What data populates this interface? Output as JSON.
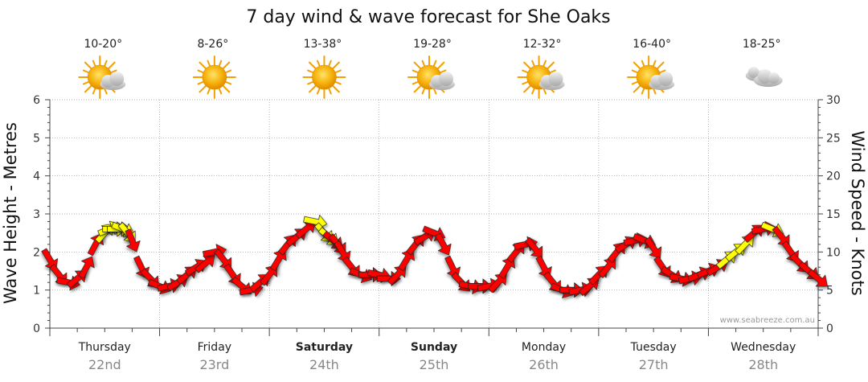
{
  "title": "7 day wind & wave forecast for She Oaks",
  "credit": "www.seabreeze.com.au",
  "days": [
    {
      "name": "Thursday",
      "date": "22nd",
      "temp": "10-20°",
      "icon": "sun-cloud-icon",
      "bold": false
    },
    {
      "name": "Friday",
      "date": "23rd",
      "temp": "8-26°",
      "icon": "sun-icon",
      "bold": false
    },
    {
      "name": "Saturday",
      "date": "24th",
      "temp": "13-38°",
      "icon": "sun-icon",
      "bold": true
    },
    {
      "name": "Sunday",
      "date": "25th",
      "temp": "19-28°",
      "icon": "sun-cloud-icon",
      "bold": true
    },
    {
      "name": "Monday",
      "date": "26th",
      "temp": "12-32°",
      "icon": "sun-cloud-icon",
      "bold": false
    },
    {
      "name": "Tuesday",
      "date": "27th",
      "temp": "16-40°",
      "icon": "sun-cloud-icon",
      "bold": false
    },
    {
      "name": "Wednesday",
      "date": "28th",
      "temp": "18-25°",
      "icon": "cloud-icon",
      "bold": false
    }
  ],
  "colors": {
    "strong_wind": "#ff0000",
    "light_wind": "#ffff00",
    "grid": "#999999",
    "sun": "#f4a000"
  },
  "chart_data": {
    "type": "line",
    "title": "7 day wind & wave forecast for She Oaks",
    "ylabel_left": "Wave Height - Metres",
    "ylabel_right": "Wind Speed - Knots",
    "ylim_left": [
      0,
      6
    ],
    "ylim_right": [
      0,
      30
    ],
    "yticks_left": [
      "0",
      "1",
      "2",
      "3",
      "4",
      "5",
      "6"
    ],
    "yticks_right": [
      "0",
      "5",
      "10",
      "15",
      "20",
      "25",
      "30"
    ],
    "x_unit": "hours from start of Thursday 22nd",
    "grid": true,
    "series": [
      {
        "name": "",
        "marker": "wind-direction-arrow",
        "x": [
          0,
          2,
          4,
          6,
          8,
          10,
          12,
          13,
          14,
          15,
          16,
          17,
          18,
          20,
          22,
          24,
          26,
          28,
          30,
          32,
          34,
          36,
          38,
          40,
          42,
          44,
          46,
          48,
          50,
          52,
          54,
          56,
          58,
          60,
          61,
          62,
          63,
          64,
          66,
          68,
          70,
          72,
          74,
          76,
          78,
          80,
          82,
          84,
          86,
          88,
          90,
          92,
          94,
          96,
          98,
          100,
          102,
          104,
          106,
          108,
          110,
          112,
          114,
          116,
          118,
          120,
          122,
          124,
          126,
          128,
          130,
          132,
          134,
          136,
          138,
          140,
          142,
          144,
          146,
          148,
          150,
          152,
          154,
          156,
          158,
          160,
          162,
          164,
          166,
          168
        ],
        "y": [
          9,
          7,
          6,
          6.5,
          8,
          11,
          12.5,
          13,
          13,
          13,
          13,
          12.5,
          11.5,
          8,
          6.5,
          5.5,
          5.5,
          6,
          7,
          8,
          8.5,
          10,
          9,
          7,
          5.5,
          5,
          6,
          7,
          9,
          11,
          12,
          13,
          14,
          12.5,
          12,
          11.5,
          11,
          10,
          8,
          7,
          7,
          7,
          6.5,
          7,
          9,
          11,
          12,
          12.5,
          11,
          8,
          6,
          5.5,
          5.5,
          5.5,
          6,
          8,
          10,
          11,
          10.5,
          8,
          6,
          5,
          5,
          5,
          5.5,
          7,
          8,
          10,
          11,
          11.5,
          11.5,
          10.5,
          8,
          7,
          6.5,
          6.5,
          7,
          7.5,
          8,
          9,
          10,
          11,
          12.5,
          13,
          13,
          12,
          10,
          8.5,
          7.5,
          6.5
        ],
        "units": "knots"
      }
    ],
    "categories": [
      "Thursday 22nd",
      "Friday 23rd",
      "Saturday 24th",
      "Sunday 25th",
      "Monday 26th",
      "Tuesday 27th",
      "Wednesday 28th"
    ]
  }
}
